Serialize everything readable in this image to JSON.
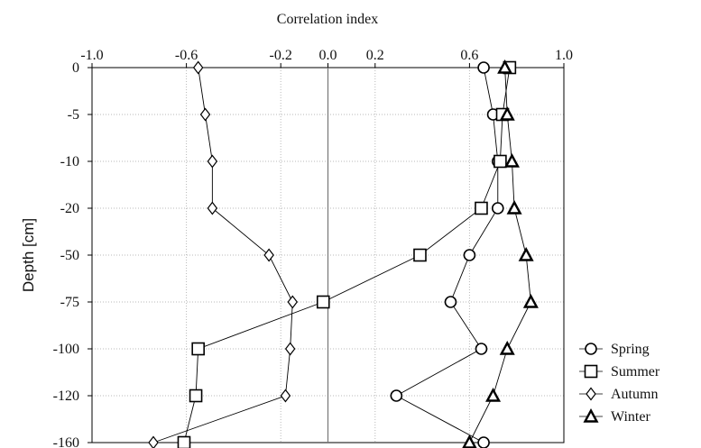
{
  "chart_data": {
    "type": "line",
    "title": "",
    "xlabel": "Correlation index",
    "ylabel": "Depth [cm]",
    "xlim": [
      -1.0,
      1.0
    ],
    "x_ticks": [
      "-1.0",
      "-0.6",
      "-0.2",
      "0.0",
      "0.2",
      "0.6",
      "1.0"
    ],
    "x_tick_values": [
      -1.0,
      -0.6,
      -0.2,
      0.0,
      0.2,
      0.6,
      1.0
    ],
    "categories": [
      "0",
      "-5",
      "-10",
      "-20",
      "-50",
      "-75",
      "-100",
      "-120",
      "-160"
    ],
    "grid": true,
    "legend_position": "bottom-right",
    "series": [
      {
        "name": "Spring",
        "marker": "circle",
        "values": [
          0.66,
          0.7,
          0.72,
          0.72,
          0.6,
          0.52,
          0.65,
          0.29,
          0.66
        ]
      },
      {
        "name": "Summer",
        "marker": "square",
        "values": [
          0.77,
          0.74,
          0.73,
          0.65,
          0.39,
          -0.02,
          -0.55,
          -0.56,
          -0.61
        ]
      },
      {
        "name": "Autumn",
        "marker": "diamond",
        "values": [
          -0.55,
          -0.52,
          -0.49,
          -0.49,
          -0.25,
          -0.15,
          -0.16,
          -0.18,
          -0.74
        ]
      },
      {
        "name": "Winter",
        "marker": "triangle",
        "values": [
          0.75,
          0.76,
          0.78,
          0.79,
          0.84,
          0.86,
          0.76,
          0.7,
          0.6
        ]
      }
    ],
    "reference_line_x": 0.0
  }
}
